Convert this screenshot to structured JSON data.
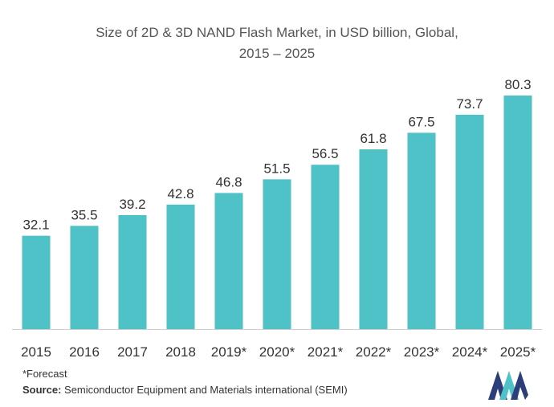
{
  "chart_data": {
    "type": "bar",
    "title_line1": "Size of 2D & 3D NAND Flash Market, in USD billion, Global,",
    "title_line2": "2015 – 2025",
    "xlabel": "",
    "ylabel": "",
    "categories": [
      "2015",
      "2016",
      "2017",
      "2018",
      "2019*",
      "2020*",
      "2021*",
      "2022*",
      "2023*",
      "2024*",
      "2025*"
    ],
    "values": [
      32.1,
      35.5,
      39.2,
      42.8,
      46.8,
      51.5,
      56.5,
      61.8,
      67.5,
      73.7,
      80.3
    ],
    "ylim": [
      0,
      80.3
    ],
    "grid": false,
    "legend": "none",
    "bar_color": "#4fc2c8"
  },
  "footnote": "*Forecast",
  "source": {
    "label": "Source:",
    "text": "Semiconductor Equipment and Materials international (SEMI)"
  },
  "logo": {
    "icon": "mordor-intelligence-logo",
    "colors": [
      "#2c3e7a",
      "#4fc2c8"
    ]
  }
}
